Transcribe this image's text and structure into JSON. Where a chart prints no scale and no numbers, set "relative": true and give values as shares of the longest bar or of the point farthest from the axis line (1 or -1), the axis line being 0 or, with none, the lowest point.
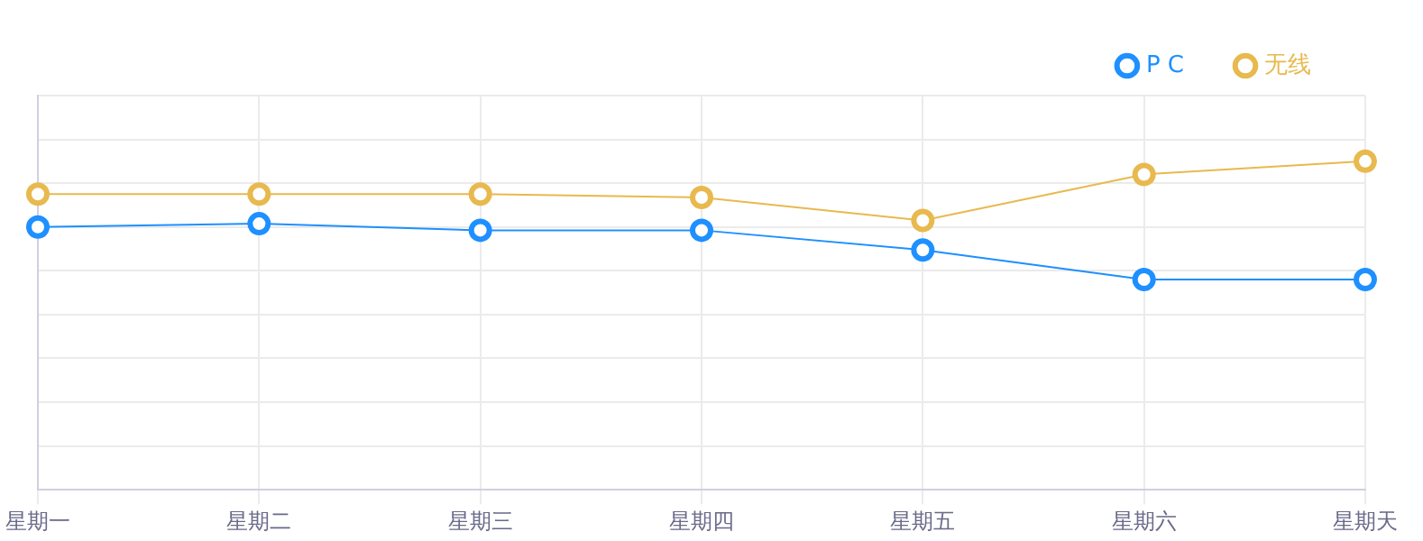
{
  "chart_data": {
    "type": "line",
    "relative": true,
    "categories": [
      "星期一",
      "星期二",
      "星期三",
      "星期四",
      "星期五",
      "星期六",
      "星期天"
    ],
    "series": [
      {
        "name": "P C",
        "color": "#1e90ff",
        "values": [
          0.8,
          0.81,
          0.79,
          0.79,
          0.73,
          0.64,
          0.64
        ]
      },
      {
        "name": "无线",
        "color": "#e8b94e",
        "values": [
          0.9,
          0.9,
          0.9,
          0.89,
          0.82,
          0.96,
          1
        ]
      }
    ],
    "grid": true,
    "legend": "top right",
    "marker": "circle"
  }
}
